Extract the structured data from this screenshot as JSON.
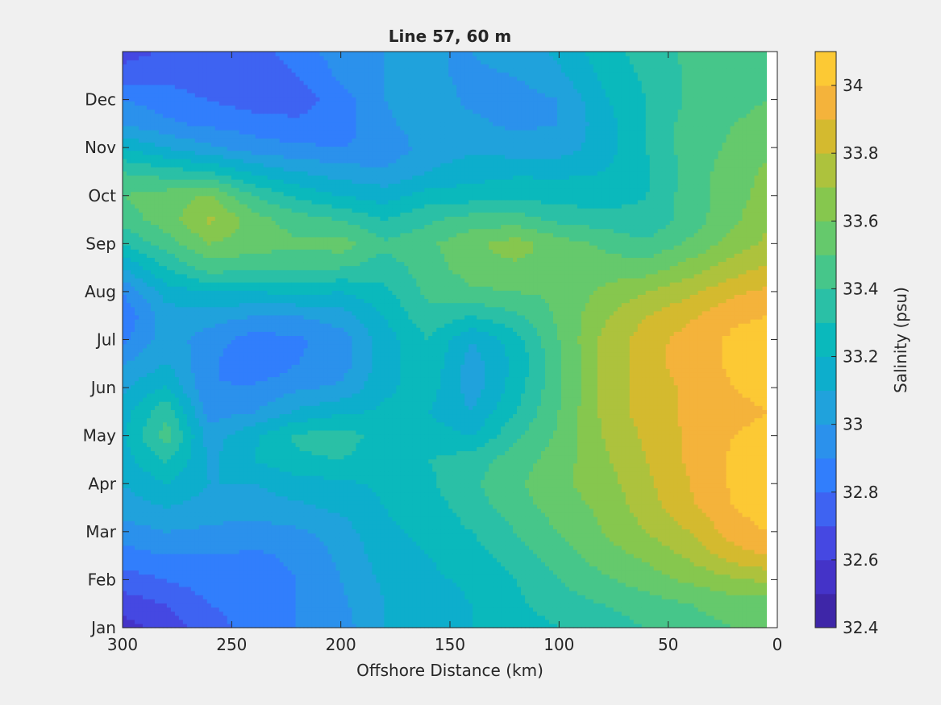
{
  "chart_data": {
    "type": "heatmap",
    "subtype": "filled-contour",
    "title": "Line 57, 60 m",
    "xlabel": "Offshore Distance (km)",
    "ylabel": "",
    "x_reversed": true,
    "xlim": [
      300,
      0
    ],
    "x_ticks": [
      300,
      250,
      200,
      150,
      100,
      50,
      0
    ],
    "x_tick_labels": [
      "300",
      "250",
      "200",
      "150",
      "100",
      "50",
      "0"
    ],
    "y_ticks_month": [
      1,
      2,
      3,
      4,
      5,
      6,
      7,
      8,
      9,
      10,
      11,
      12
    ],
    "y_tick_labels": [
      "Jan",
      "Feb",
      "Mar",
      "Apr",
      "May",
      "Jun",
      "Jul",
      "Aug",
      "Sep",
      "Oct",
      "Nov",
      "Dec"
    ],
    "ylim_month": [
      1,
      13
    ],
    "data_xlim": [
      300,
      5
    ],
    "colorbar": {
      "label": "Salinity (psu)",
      "clim": [
        32.4,
        34.1
      ],
      "levels": [
        32.4,
        32.5,
        32.6,
        32.7,
        32.8,
        32.9,
        33.0,
        33.1,
        33.2,
        33.3,
        33.4,
        33.5,
        33.6,
        33.7,
        33.8,
        33.9,
        34.0,
        34.1
      ],
      "ticks": [
        32.4,
        32.6,
        32.8,
        33.0,
        33.2,
        33.4,
        33.6,
        33.8,
        34.0
      ],
      "tick_labels": [
        "32.4",
        "32.6",
        "32.8",
        "33",
        "33.2",
        "33.4",
        "33.6",
        "33.8",
        "34"
      ],
      "colors": [
        "#3e26a8",
        "#4433c8",
        "#4548e2",
        "#3e63f2",
        "#317efc",
        "#2b91ec",
        "#20a2dc",
        "#0daecc",
        "#0ab9bc",
        "#2ac0a6",
        "#46c68a",
        "#65c96c",
        "#86c74e",
        "#adc23d",
        "#d4ba2f",
        "#f4b33b",
        "#fcc934",
        "#f4e425"
      ]
    },
    "distance_km": [
      300,
      280,
      260,
      240,
      220,
      200,
      180,
      160,
      140,
      120,
      100,
      80,
      60,
      40,
      20,
      5
    ],
    "month_rows": [
      {
        "month": 1.0,
        "values": [
          32.55,
          32.65,
          32.75,
          32.85,
          32.9,
          32.95,
          33.1,
          33.15,
          33.2,
          33.25,
          33.3,
          33.35,
          33.4,
          33.45,
          33.5,
          33.5
        ]
      },
      {
        "month": 1.5,
        "values": [
          32.65,
          32.7,
          32.8,
          32.85,
          32.9,
          32.98,
          33.1,
          33.15,
          33.2,
          33.28,
          33.35,
          33.4,
          33.45,
          33.5,
          33.55,
          33.55
        ]
      },
      {
        "month": 2.0,
        "values": [
          32.75,
          32.8,
          32.85,
          32.85,
          32.9,
          33.0,
          33.12,
          33.18,
          33.22,
          33.3,
          33.4,
          33.48,
          33.55,
          33.62,
          33.68,
          33.72
        ]
      },
      {
        "month": 2.5,
        "values": [
          32.85,
          32.9,
          32.9,
          32.88,
          32.92,
          33.02,
          33.15,
          33.2,
          33.25,
          33.35,
          33.45,
          33.55,
          33.62,
          33.72,
          33.85,
          33.9
        ]
      },
      {
        "month": 3.0,
        "values": [
          32.95,
          33.0,
          32.98,
          32.95,
          32.98,
          33.05,
          33.18,
          33.22,
          33.3,
          33.4,
          33.5,
          33.6,
          33.7,
          33.8,
          33.95,
          34.0
        ]
      },
      {
        "month": 3.5,
        "values": [
          33.05,
          33.1,
          33.05,
          33.05,
          33.08,
          33.12,
          33.2,
          33.25,
          33.35,
          33.45,
          33.55,
          33.62,
          33.75,
          33.88,
          34.0,
          34.05
        ]
      },
      {
        "month": 4.0,
        "values": [
          33.1,
          33.2,
          33.1,
          33.1,
          33.15,
          33.18,
          33.22,
          33.28,
          33.38,
          33.48,
          33.58,
          33.65,
          33.78,
          33.9,
          34.02,
          34.1
        ]
      },
      {
        "month": 4.5,
        "values": [
          33.15,
          33.32,
          33.08,
          33.2,
          33.28,
          33.3,
          33.25,
          33.3,
          33.35,
          33.45,
          33.55,
          33.68,
          33.8,
          33.92,
          34.02,
          34.08
        ]
      },
      {
        "month": 5.0,
        "values": [
          33.18,
          33.45,
          33.05,
          33.18,
          33.32,
          33.35,
          33.25,
          33.25,
          33.2,
          33.38,
          33.52,
          33.7,
          33.82,
          33.92,
          34.0,
          34.02
        ]
      },
      {
        "month": 5.5,
        "values": [
          33.15,
          33.38,
          32.95,
          33.0,
          33.12,
          33.18,
          33.22,
          33.2,
          33.1,
          33.3,
          33.5,
          33.72,
          33.85,
          33.92,
          33.98,
          34.0
        ]
      },
      {
        "month": 6.0,
        "values": [
          33.08,
          33.22,
          32.9,
          32.92,
          32.98,
          33.02,
          33.18,
          33.25,
          33.05,
          33.25,
          33.48,
          33.72,
          33.85,
          33.92,
          34.0,
          34.02
        ]
      },
      {
        "month": 6.5,
        "values": [
          33.0,
          33.1,
          32.92,
          32.8,
          32.9,
          32.95,
          33.15,
          33.28,
          33.05,
          33.22,
          33.48,
          33.72,
          33.86,
          33.95,
          34.02,
          34.08
        ]
      },
      {
        "month": 7.0,
        "values": [
          32.88,
          33.05,
          32.95,
          32.85,
          32.88,
          32.95,
          33.15,
          33.3,
          33.1,
          33.25,
          33.5,
          33.72,
          33.85,
          33.95,
          34.02,
          34.05
        ]
      },
      {
        "month": 7.5,
        "values": [
          32.82,
          33.05,
          33.05,
          33.0,
          33.0,
          33.05,
          33.2,
          33.38,
          33.3,
          33.38,
          33.52,
          33.68,
          33.8,
          33.88,
          33.98,
          34.0
        ]
      },
      {
        "month": 8.0,
        "values": [
          32.9,
          33.15,
          33.2,
          33.2,
          33.22,
          33.2,
          33.28,
          33.42,
          33.48,
          33.5,
          33.52,
          33.62,
          33.7,
          33.78,
          33.88,
          33.92
        ]
      },
      {
        "month": 8.5,
        "values": [
          33.1,
          33.3,
          33.45,
          33.42,
          33.42,
          33.4,
          33.35,
          33.45,
          33.55,
          33.58,
          33.55,
          33.55,
          33.55,
          33.65,
          33.75,
          33.82
        ]
      },
      {
        "month": 9.0,
        "values": [
          33.3,
          33.45,
          33.6,
          33.55,
          33.52,
          33.55,
          33.42,
          33.48,
          33.58,
          33.65,
          33.55,
          33.48,
          33.42,
          33.52,
          33.65,
          33.72
        ]
      },
      {
        "month": 9.5,
        "values": [
          33.45,
          33.55,
          33.72,
          33.55,
          33.45,
          33.4,
          33.3,
          33.38,
          33.45,
          33.45,
          33.38,
          33.35,
          33.32,
          33.45,
          33.58,
          33.68
        ]
      },
      {
        "month": 10.0,
        "values": [
          33.5,
          33.55,
          33.62,
          33.4,
          33.28,
          33.2,
          33.15,
          33.25,
          33.25,
          33.28,
          33.25,
          33.25,
          33.3,
          33.45,
          33.55,
          33.65
        ]
      },
      {
        "month": 10.5,
        "values": [
          33.4,
          33.35,
          33.3,
          33.18,
          33.1,
          33.05,
          33.02,
          33.1,
          33.15,
          33.18,
          33.18,
          33.2,
          33.28,
          33.45,
          33.55,
          33.62
        ]
      },
      {
        "month": 11.0,
        "values": [
          33.2,
          33.1,
          33.02,
          32.95,
          32.92,
          32.9,
          32.92,
          33.05,
          33.08,
          33.05,
          33.05,
          33.15,
          33.3,
          33.45,
          33.52,
          33.58
        ]
      },
      {
        "month": 11.5,
        "values": [
          33.0,
          32.92,
          32.88,
          32.85,
          32.82,
          32.85,
          32.98,
          33.05,
          33.02,
          32.98,
          33.0,
          33.15,
          33.3,
          33.45,
          33.5,
          33.52
        ]
      },
      {
        "month": 12.0,
        "values": [
          32.9,
          32.85,
          32.8,
          32.75,
          32.75,
          32.85,
          33.0,
          33.05,
          32.98,
          32.95,
          33.0,
          33.18,
          33.3,
          33.42,
          33.48,
          33.5
        ]
      },
      {
        "month": 12.5,
        "values": [
          32.75,
          32.78,
          32.72,
          32.72,
          32.8,
          32.92,
          33.0,
          33.02,
          32.98,
          33.0,
          33.08,
          33.22,
          33.32,
          33.42,
          33.48,
          33.5
        ]
      },
      {
        "month": 13.0,
        "values": [
          32.65,
          32.72,
          32.7,
          32.75,
          32.85,
          32.95,
          33.0,
          33.0,
          33.0,
          33.05,
          33.12,
          33.25,
          33.35,
          33.42,
          33.48,
          33.5
        ]
      }
    ]
  }
}
